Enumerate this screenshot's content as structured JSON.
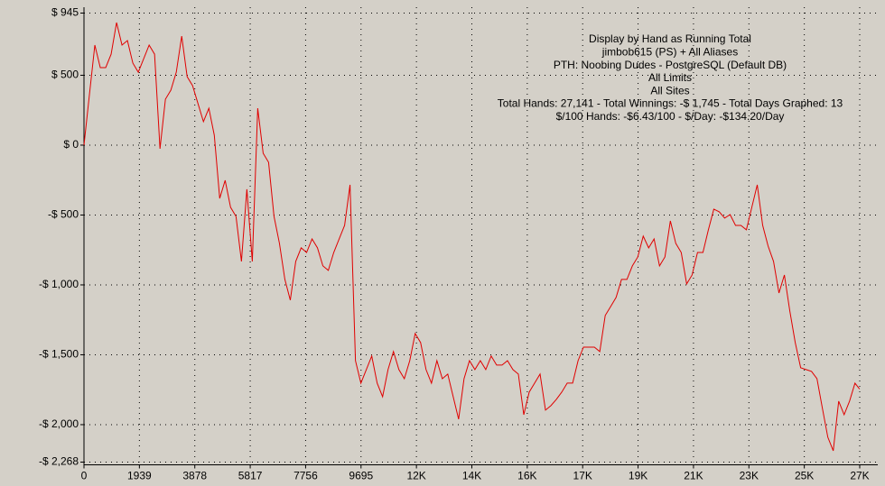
{
  "chart_data": {
    "type": "line",
    "title_lines": [
      "Display by Hand as Running Total",
      "jimbob615 (PS) + All Aliases",
      "PTH: Noobing Dudes - PostgreSQL (Default DB)",
      "All Limits",
      "All Sites",
      "Total Hands: 27,141 - Total Winnings: -$ 1,745 - Total Days Graphed: 13",
      "$/100 Hands: -$6.43/100 - $/Day: -$134.20/Day"
    ],
    "x": [
      0,
      190,
      380,
      570,
      760,
      950,
      1140,
      1330,
      1520,
      1710,
      1900,
      2090,
      2280,
      2470,
      2660,
      2850,
      3040,
      3230,
      3420,
      3610,
      3800,
      3990,
      4180,
      4370,
      4560,
      4750,
      4940,
      5130,
      5320,
      5510,
      5700,
      5890,
      6080,
      6270,
      6460,
      6650,
      6840,
      7030,
      7220,
      7410,
      7600,
      7790,
      7980,
      8170,
      8360,
      8550,
      8740,
      8930,
      9120,
      9310,
      9500,
      9690,
      9880,
      10070,
      10260,
      10450,
      10640,
      10830,
      11020,
      11210,
      11400,
      11590,
      11780,
      11970,
      12160,
      12350,
      12540,
      12730,
      12920,
      13110,
      13300,
      13490,
      13680,
      13870,
      14060,
      14250,
      14440,
      14630,
      14820,
      15010,
      15200,
      15390,
      15580,
      15770,
      15960,
      16150,
      16340,
      16530,
      16720,
      16910,
      17100,
      17290,
      17480,
      17670,
      17860,
      18050,
      18240,
      18430,
      18620,
      18810,
      19000,
      19190,
      19380,
      19570,
      19760,
      19950,
      20140,
      20330,
      20520,
      20710,
      20900,
      21090,
      21280,
      21470,
      21660,
      21850,
      22040,
      22230,
      22420,
      22610,
      22800,
      22990,
      23180,
      23370,
      23560,
      23750,
      23940,
      24130,
      24320,
      24510,
      24700,
      24890,
      25080,
      25270,
      25460,
      25650,
      25840,
      26030,
      26220,
      26410,
      26600,
      26790,
      26980,
      27141
    ],
    "series": [
      {
        "color": "#e00000",
        "values": [
          0,
          361,
          716,
          555,
          555,
          651,
          877,
          716,
          748,
          587,
          522,
          619,
          716,
          651,
          -26,
          329,
          393,
          522,
          780,
          490,
          426,
          297,
          168,
          264,
          71,
          -381,
          -252,
          -445,
          -510,
          -832,
          -316,
          -832,
          264,
          -58,
          -123,
          -510,
          -703,
          -961,
          -1109,
          -832,
          -735,
          -768,
          -671,
          -735,
          -864,
          -896,
          -768,
          -671,
          -574,
          -284,
          -1542,
          -1703,
          -1606,
          -1509,
          -1703,
          -1800,
          -1606,
          -1477,
          -1606,
          -1671,
          -1542,
          -1348,
          -1413,
          -1606,
          -1703,
          -1542,
          -1671,
          -1638,
          -1800,
          -1961,
          -1671,
          -1542,
          -1606,
          -1542,
          -1606,
          -1509,
          -1574,
          -1574,
          -1542,
          -1606,
          -1638,
          -1929,
          -1767,
          -1703,
          -1638,
          -1896,
          -1864,
          -1819,
          -1767,
          -1703,
          -1703,
          -1542,
          -1445,
          -1445,
          -1445,
          -1477,
          -1219,
          -1155,
          -1090,
          -961,
          -961,
          -864,
          -800,
          -651,
          -735,
          -671,
          -864,
          -800,
          -542,
          -703,
          -768,
          -993,
          -929,
          -768,
          -768,
          -606,
          -458,
          -477,
          -522,
          -497,
          -574,
          -574,
          -606,
          -445,
          -284,
          -574,
          -722,
          -832,
          -1058,
          -929,
          -1187,
          -1413,
          -1593,
          -1606,
          -1619,
          -1671,
          -1883,
          -2090,
          -2187,
          -1832,
          -1929,
          -1832,
          -1703,
          -1745
        ]
      }
    ],
    "xlim": [
      0,
      27146
    ],
    "ylim": [
      -2268,
      945
    ],
    "xticks": [
      0,
      1939,
      3878,
      5817,
      7756,
      9695,
      {
        "value": 11634,
        "label": "12K"
      },
      {
        "value": 13573,
        "label": "14K"
      },
      {
        "value": 15512,
        "label": "16K"
      },
      {
        "value": 17451,
        "label": "17K"
      },
      {
        "value": 19390,
        "label": "19K"
      },
      {
        "value": 21329,
        "label": "21K"
      },
      {
        "value": 23268,
        "label": "23K"
      },
      {
        "value": 25207,
        "label": "25K"
      },
      {
        "value": 27146,
        "label": "27K"
      }
    ],
    "yticks": [
      {
        "value": 945,
        "label": "$ 945"
      },
      {
        "value": 500,
        "label": "$ 500"
      },
      {
        "value": 0,
        "label": "$ 0"
      },
      {
        "value": -500,
        "label": "-$ 500"
      },
      {
        "value": -1000,
        "label": "-$ 1,000"
      },
      {
        "value": -1500,
        "label": "-$ 1,500"
      },
      {
        "value": -2000,
        "label": "-$ 2,000"
      },
      {
        "value": -2268,
        "label": "-$ 2,268"
      }
    ],
    "grid": true
  }
}
